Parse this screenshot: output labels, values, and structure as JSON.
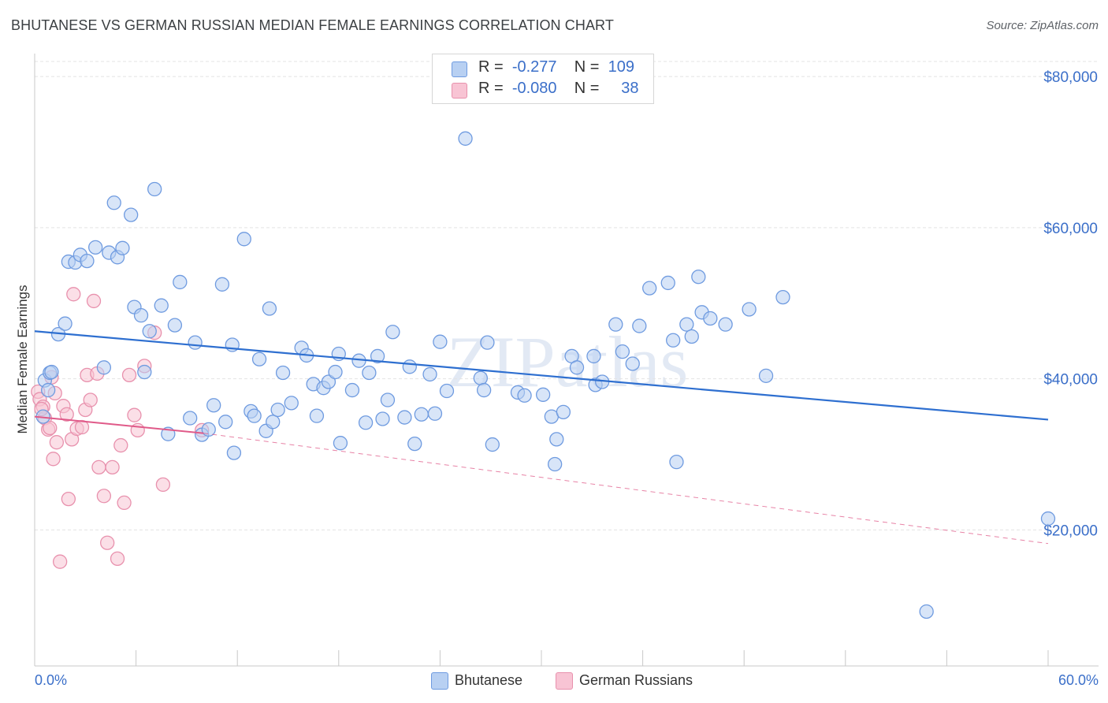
{
  "header": {
    "title": "BHUTANESE VS GERMAN RUSSIAN MEDIAN FEMALE EARNINGS CORRELATION CHART",
    "source": "Source: ZipAtlas.com"
  },
  "watermark": "ZIPatlas",
  "legend_top": {
    "rows": [
      {
        "r_label": "R =",
        "r_value": "-0.277",
        "n_label": "N =",
        "n_value": "109"
      },
      {
        "r_label": "R =",
        "r_value": "-0.080",
        "n_label": "N =",
        "n_value": "38"
      }
    ]
  },
  "legend_bottom": {
    "items": [
      "Bhutanese",
      "German Russians"
    ]
  },
  "colors": {
    "blue_fill": "#b8d0f2",
    "blue_stroke": "#6f9be0",
    "blue_line": "#2e6fd0",
    "pink_fill": "#f8c4d4",
    "pink_stroke": "#e891ad",
    "pink_line": "#e05a89",
    "axis_text": "#3b6fc9",
    "grid": "#e3e3e3"
  },
  "chart_data": {
    "type": "scatter",
    "title": "BHUTANESE VS GERMAN RUSSIAN MEDIAN FEMALE EARNINGS CORRELATION CHART",
    "xlabel": "",
    "ylabel": "Median Female Earnings",
    "xlim": [
      0,
      60
    ],
    "ylim": [
      2000,
      82000
    ],
    "x_tick_labels": [
      "0.0%",
      "60.0%"
    ],
    "y_ticks": [
      20000,
      40000,
      60000,
      80000
    ],
    "y_tick_labels": [
      "$20,000",
      "$40,000",
      "$60,000",
      "$80,000"
    ],
    "grid": true,
    "legend_position": "top-center",
    "series": [
      {
        "name": "Bhutanese",
        "r": -0.277,
        "n": 109,
        "trend": {
          "x": [
            0,
            60
          ],
          "y": [
            46300,
            34600
          ],
          "style": "solid"
        },
        "points": [
          [
            0.5,
            35000
          ],
          [
            0.6,
            39800
          ],
          [
            0.9,
            40800
          ],
          [
            1.0,
            40900
          ],
          [
            1.4,
            45900
          ],
          [
            1.8,
            47300
          ],
          [
            2.0,
            55500
          ],
          [
            2.4,
            55400
          ],
          [
            2.7,
            56400
          ],
          [
            3.1,
            55600
          ],
          [
            3.6,
            57400
          ],
          [
            4.1,
            41500
          ],
          [
            4.4,
            56700
          ],
          [
            4.7,
            63300
          ],
          [
            4.9,
            56100
          ],
          [
            5.2,
            57300
          ],
          [
            5.7,
            61700
          ],
          [
            5.9,
            49500
          ],
          [
            6.3,
            48400
          ],
          [
            6.5,
            40900
          ],
          [
            6.8,
            46300
          ],
          [
            7.1,
            65100
          ],
          [
            7.5,
            49700
          ],
          [
            7.9,
            32700
          ],
          [
            8.3,
            47100
          ],
          [
            8.6,
            52800
          ],
          [
            9.2,
            34800
          ],
          [
            9.5,
            44800
          ],
          [
            9.9,
            32600
          ],
          [
            10.3,
            33300
          ],
          [
            10.6,
            36500
          ],
          [
            11.1,
            52500
          ],
          [
            11.3,
            34300
          ],
          [
            11.7,
            44500
          ],
          [
            11.8,
            30200
          ],
          [
            12.4,
            58500
          ],
          [
            12.8,
            35700
          ],
          [
            13.0,
            35100
          ],
          [
            13.3,
            42600
          ],
          [
            13.7,
            33100
          ],
          [
            13.9,
            49300
          ],
          [
            14.1,
            34300
          ],
          [
            14.4,
            35900
          ],
          [
            14.7,
            40800
          ],
          [
            15.2,
            36800
          ],
          [
            15.8,
            44100
          ],
          [
            16.1,
            43100
          ],
          [
            16.5,
            39300
          ],
          [
            16.7,
            35100
          ],
          [
            17.1,
            38800
          ],
          [
            17.4,
            39600
          ],
          [
            17.8,
            40900
          ],
          [
            18.0,
            43300
          ],
          [
            18.1,
            31500
          ],
          [
            18.8,
            38500
          ],
          [
            19.2,
            42400
          ],
          [
            19.6,
            34200
          ],
          [
            19.8,
            40800
          ],
          [
            20.3,
            43000
          ],
          [
            20.6,
            34700
          ],
          [
            20.9,
            37200
          ],
          [
            21.2,
            46200
          ],
          [
            21.9,
            34900
          ],
          [
            22.2,
            41600
          ],
          [
            22.5,
            31400
          ],
          [
            22.9,
            35300
          ],
          [
            23.4,
            40600
          ],
          [
            23.7,
            35400
          ],
          [
            24.0,
            44900
          ],
          [
            24.4,
            38400
          ],
          [
            25.5,
            71800
          ],
          [
            26.4,
            40100
          ],
          [
            26.6,
            38500
          ],
          [
            26.8,
            44800
          ],
          [
            27.1,
            31300
          ],
          [
            28.6,
            38200
          ],
          [
            29.0,
            37800
          ],
          [
            30.1,
            37900
          ],
          [
            30.6,
            35000
          ],
          [
            30.8,
            28700
          ],
          [
            30.9,
            32000
          ],
          [
            31.3,
            35600
          ],
          [
            31.8,
            43000
          ],
          [
            32.1,
            41500
          ],
          [
            33.1,
            43000
          ],
          [
            33.2,
            39200
          ],
          [
            33.6,
            39600
          ],
          [
            34.4,
            47200
          ],
          [
            34.8,
            43600
          ],
          [
            35.4,
            42000
          ],
          [
            35.8,
            47000
          ],
          [
            36.4,
            52000
          ],
          [
            37.5,
            52700
          ],
          [
            37.8,
            45100
          ],
          [
            38.0,
            29000
          ],
          [
            38.6,
            47200
          ],
          [
            38.9,
            45600
          ],
          [
            39.3,
            53500
          ],
          [
            39.5,
            48800
          ],
          [
            40.0,
            48000
          ],
          [
            40.9,
            47200
          ],
          [
            42.3,
            49200
          ],
          [
            43.3,
            40400
          ],
          [
            44.3,
            50800
          ],
          [
            52.8,
            9200
          ],
          [
            60.0,
            21500
          ],
          [
            0.8,
            38500
          ]
        ]
      },
      {
        "name": "German Russians",
        "r": -0.08,
        "n": 38,
        "trend_solid": {
          "x": [
            0,
            10
          ],
          "y": [
            35000,
            32800
          ],
          "style": "solid"
        },
        "trend_dashed": {
          "x": [
            10,
            60
          ],
          "y": [
            32800,
            18200
          ],
          "style": "dashed"
        },
        "points": [
          [
            0.2,
            38300
          ],
          [
            0.3,
            37300
          ],
          [
            0.5,
            36300
          ],
          [
            0.6,
            34800
          ],
          [
            0.8,
            33300
          ],
          [
            0.9,
            33500
          ],
          [
            1.1,
            29400
          ],
          [
            1.2,
            38100
          ],
          [
            1.3,
            31600
          ],
          [
            1.5,
            15800
          ],
          [
            1.7,
            36400
          ],
          [
            1.9,
            35300
          ],
          [
            2.0,
            24100
          ],
          [
            2.2,
            32000
          ],
          [
            2.3,
            51200
          ],
          [
            2.5,
            33400
          ],
          [
            2.8,
            33600
          ],
          [
            3.0,
            35900
          ],
          [
            3.1,
            40500
          ],
          [
            3.3,
            37200
          ],
          [
            3.5,
            50300
          ],
          [
            3.7,
            40700
          ],
          [
            3.8,
            28300
          ],
          [
            4.1,
            24500
          ],
          [
            4.3,
            18300
          ],
          [
            4.6,
            28300
          ],
          [
            4.9,
            16200
          ],
          [
            5.1,
            31200
          ],
          [
            5.3,
            23600
          ],
          [
            5.6,
            40500
          ],
          [
            5.9,
            35200
          ],
          [
            6.1,
            33200
          ],
          [
            6.5,
            41700
          ],
          [
            7.1,
            46100
          ],
          [
            7.6,
            26000
          ],
          [
            9.9,
            33200
          ],
          [
            1.0,
            40200
          ],
          [
            0.4,
            36000
          ]
        ]
      }
    ]
  }
}
